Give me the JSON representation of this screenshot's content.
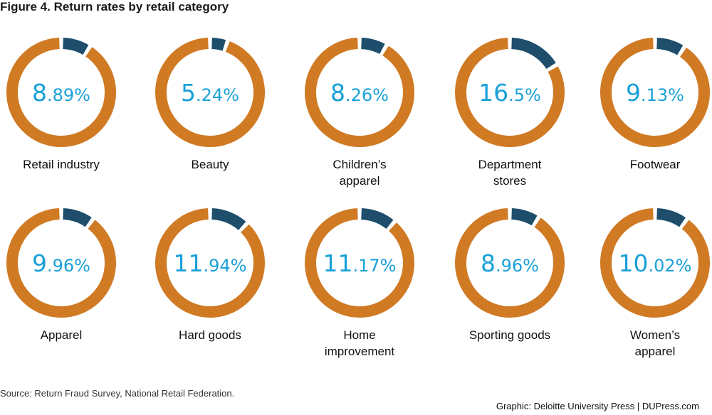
{
  "title": "Figure 4. Return rates by retail category",
  "source": "Source: Return Fraud Survey, National Retail Federation.",
  "credit": "Graphic: Deloitte University Press  |  DUPress.com",
  "colors": {
    "main": "#d07a24",
    "highlight": "#1f4e6c",
    "value_text": "#1aa0d8"
  },
  "chart_data": {
    "type": "pie",
    "variant": "donut",
    "title": "Figure 4. Return rates by retail category",
    "unit": "%",
    "categories": [
      {
        "label": "Retail industry",
        "value": 8.89,
        "int": "8",
        "dec": ".89%"
      },
      {
        "label": "Beauty",
        "value": 5.24,
        "int": "5",
        "dec": ".24%"
      },
      {
        "label": "Children’s apparel",
        "value": 8.26,
        "int": "8",
        "dec": ".26%"
      },
      {
        "label": "Department stores",
        "value": 16.5,
        "int": "16",
        "dec": ".5%"
      },
      {
        "label": "Footwear",
        "value": 9.13,
        "int": "9",
        "dec": ".13%"
      },
      {
        "label": "Apparel",
        "value": 9.96,
        "int": "9",
        "dec": ".96%"
      },
      {
        "label": "Hard goods",
        "value": 11.94,
        "int": "11",
        "dec": ".94%"
      },
      {
        "label": "Home improvement",
        "value": 11.17,
        "int": "11",
        "dec": ".17%"
      },
      {
        "label": "Sporting goods",
        "value": 8.96,
        "int": "8",
        "dec": ".96%"
      },
      {
        "label": "Women’s apparel",
        "value": 10.02,
        "int": "10",
        "dec": ".02%"
      }
    ]
  }
}
